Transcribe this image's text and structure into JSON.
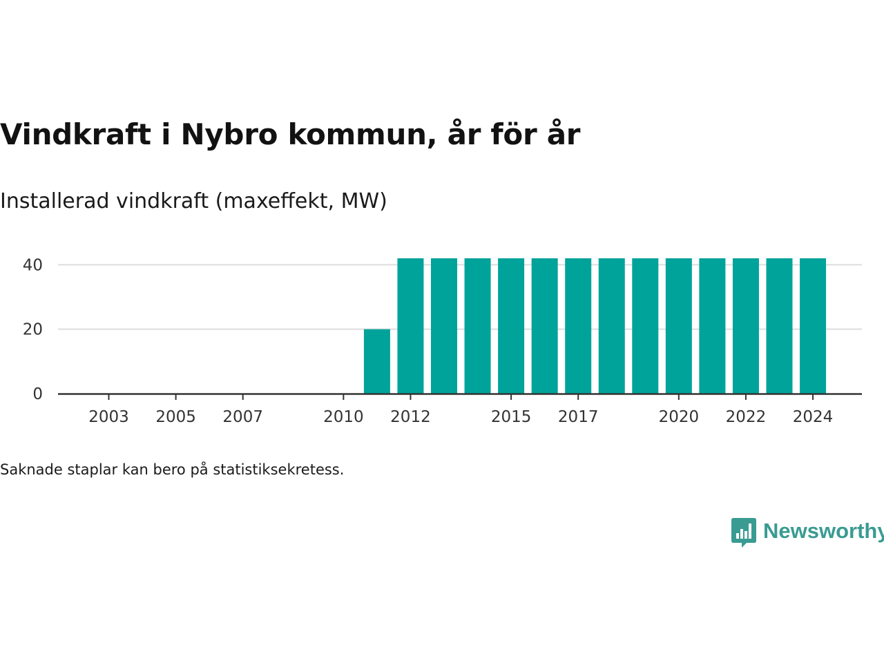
{
  "title": "Vindkraft i Nybro kommun, år för år",
  "subtitle": "Installerad vindkraft (maxeffekt, MW)",
  "note": "Saknade staplar kan bero på statistiksekretess.",
  "brand": {
    "name": "Newsworthy",
    "icon": "newsworthy-logo-icon",
    "color": "#3a9b92"
  },
  "chart_data": {
    "type": "bar",
    "categories": [
      "2003",
      "2004",
      "2005",
      "2006",
      "2007",
      "2008",
      "2009",
      "2010",
      "2011",
      "2012",
      "2013",
      "2014",
      "2015",
      "2016",
      "2017",
      "2018",
      "2019",
      "2020",
      "2021",
      "2022",
      "2023",
      "2024"
    ],
    "x_tick_labels": [
      "2003",
      "2005",
      "2007",
      "2010",
      "2012",
      "2015",
      "2017",
      "2020",
      "2022",
      "2024"
    ],
    "values": [
      0,
      0,
      0,
      0,
      0,
      0,
      0,
      0,
      20,
      42,
      42,
      42,
      42,
      42,
      42,
      42,
      42,
      42,
      42,
      42,
      42,
      42
    ],
    "ylim": [
      0,
      42
    ],
    "y_ticks": [
      "0",
      "20",
      "40"
    ],
    "grid": "horizontal",
    "bar_color": "#00a39a",
    "grid_color": "#dddddd",
    "axis_color": "#333333"
  }
}
